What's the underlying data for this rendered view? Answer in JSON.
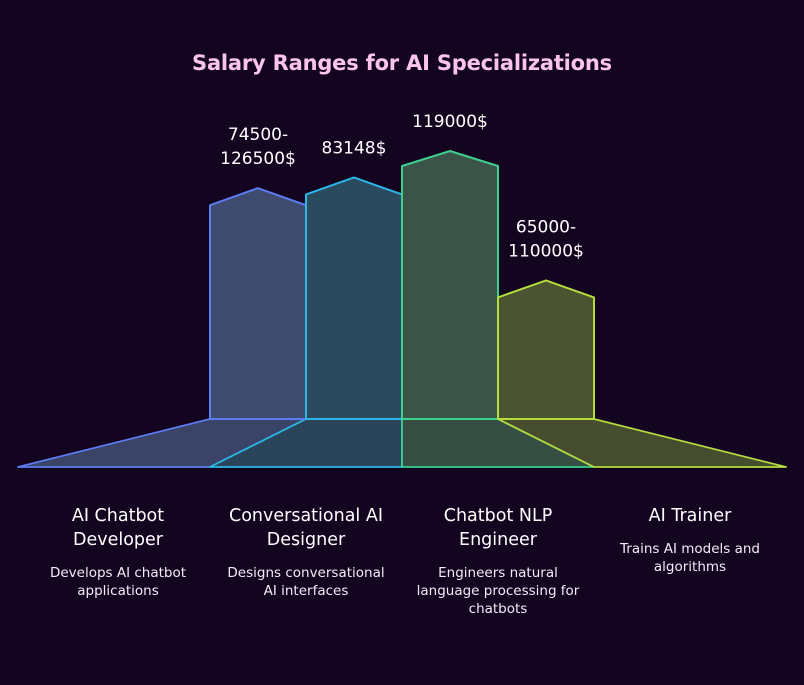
{
  "chart_data": {
    "type": "bar",
    "title": "Salary Ranges for AI Specializations",
    "series": [
      {
        "category": "AI Chatbot Developer",
        "name_lines": [
          "AI Chatbot",
          "Developer"
        ],
        "description_lines": [
          "Develops AI chatbot",
          "applications"
        ],
        "label_lines": [
          "74500-",
          "126500$"
        ],
        "value": 74500,
        "color": "#5b7cf2",
        "fill": "#3e4a6e"
      },
      {
        "category": "Conversational AI Designer",
        "name_lines": [
          "Conversational AI",
          "Designer"
        ],
        "description_lines": [
          "Designs conversational",
          "AI interfaces"
        ],
        "label_lines": [
          "83148$"
        ],
        "value": 83148,
        "color": "#2bb6e8",
        "fill": "#2c4a5e"
      },
      {
        "category": "Chatbot NLP Engineer",
        "name_lines": [
          "Chatbot NLP",
          "Engineer"
        ],
        "description_lines": [
          "Engineers natural",
          "language processing for",
          "chatbots"
        ],
        "label_lines": [
          "119000$"
        ],
        "value": 119000,
        "color": "#3ecf8e",
        "fill": "#3a5448"
      },
      {
        "category": "AI Trainer",
        "name_lines": [
          "AI Trainer"
        ],
        "description_lines": [
          "Trains AI models and",
          "algorithms"
        ],
        "label_lines": [
          "65000-",
          "110000$"
        ],
        "value": 65000,
        "color": "#b4dc3c",
        "fill": "#4a5430"
      }
    ]
  }
}
